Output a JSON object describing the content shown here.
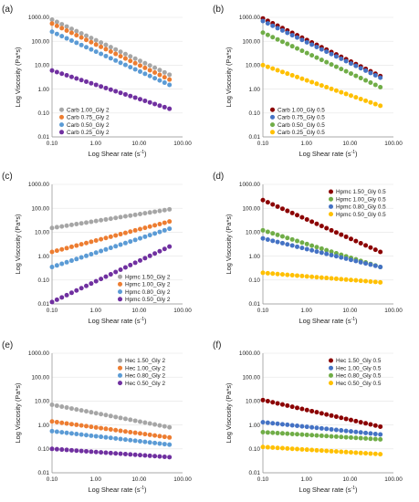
{
  "figure": {
    "panels": [
      {
        "letter": "(a)",
        "xlabel": "Log Shear rate (s",
        "xlabel_sup": "-1",
        "xlabel_tail": ")",
        "ylabel": "Log Viscosity (Pa*s)"
      },
      {
        "letter": "(b)",
        "xlabel": "Log Shear rate (s",
        "xlabel_sup": "-1",
        "xlabel_tail": ")",
        "ylabel": "Log Viscosity (Pa*s)"
      },
      {
        "letter": "(c)",
        "xlabel": "Log Shear rate (s",
        "xlabel_sup": "-1",
        "xlabel_tail": ")",
        "ylabel": "Log Viscosity (Pa*s)"
      },
      {
        "letter": "(d)",
        "xlabel": "Log Shear rate (s",
        "xlabel_sup": "-1",
        "xlabel_tail": ")",
        "ylabel": "Log Viscosity (Pa*s)"
      },
      {
        "letter": "(e)",
        "xlabel": "Log Shear rate (s",
        "xlabel_sup": "-1",
        "xlabel_tail": ")",
        "ylabel": "Log Viscosity (Pa*s)"
      },
      {
        "letter": "(f)",
        "xlabel": "Log Shear rate (s",
        "xlabel_sup": "-1",
        "xlabel_tail": ")",
        "ylabel": "Log Viscosity (Pa*s)"
      }
    ]
  },
  "chart_data": [
    {
      "panel": "(a)",
      "type": "scatter",
      "x_scale": "log",
      "y_scale": "log",
      "xlim": [
        0.1,
        100
      ],
      "ylim": [
        0.01,
        1000
      ],
      "xticks": [
        "0.10",
        "1.00",
        "10.00",
        "100.00"
      ],
      "yticks": [
        "0.01",
        "0.10",
        "1.00",
        "10.00",
        "100.00",
        "1000.00"
      ],
      "legend_position": "bottom-left",
      "x_range": [
        0.1,
        50
      ],
      "points_per_series": 25,
      "series": [
        {
          "name": "Carb 1.00_Gly 2",
          "color": "#a6a6a6",
          "y_start": 800,
          "y_end": 4
        },
        {
          "name": "Carb 0.75_Gly 2",
          "color": "#ed7d31",
          "y_start": 550,
          "y_end": 2.5
        },
        {
          "name": "Carb 0.50_Gly 2",
          "color": "#5b9bd5",
          "y_start": 250,
          "y_end": 1.5
        },
        {
          "name": "Carb 0.25_Gly 2",
          "color": "#7030a0",
          "y_start": 6,
          "y_end": 0.15
        }
      ]
    },
    {
      "panel": "(b)",
      "type": "scatter",
      "x_scale": "log",
      "y_scale": "log",
      "xlim": [
        0.1,
        100
      ],
      "ylim": [
        0.01,
        1000
      ],
      "xticks": [
        "0.10",
        "1.00",
        "10.00",
        "100.00"
      ],
      "yticks": [
        "0.01",
        "0.10",
        "1.00",
        "10.00",
        "100.00",
        "1000.00"
      ],
      "legend_position": "bottom-left",
      "x_range": [
        0.1,
        50
      ],
      "points_per_series": 25,
      "series": [
        {
          "name": "Carb 1.00_Gly 0.5",
          "color": "#8b0000",
          "y_start": 900,
          "y_end": 3.5
        },
        {
          "name": "Carb 0.75_Gly 0.5",
          "color": "#4472c4",
          "y_start": 700,
          "y_end": 3
        },
        {
          "name": "Carb 0.50_Gly 0.5",
          "color": "#70ad47",
          "y_start": 230,
          "y_end": 1.2
        },
        {
          "name": "Carb 0.25_Gly 0.5",
          "color": "#ffc000",
          "y_start": 10,
          "y_end": 0.2
        }
      ]
    },
    {
      "panel": "(c)",
      "type": "scatter",
      "x_scale": "log",
      "y_scale": "log",
      "xlim": [
        0.1,
        100
      ],
      "ylim": [
        0.01,
        1000
      ],
      "xticks": [
        "0.10",
        "1.00",
        "10.00",
        "100.00"
      ],
      "yticks": [
        "0.01",
        "0.10",
        "1.00",
        "10.00",
        "100.00",
        "1000.00"
      ],
      "legend_position": "bottom-right",
      "x_range": [
        0.1,
        50
      ],
      "points_per_series": 25,
      "series": [
        {
          "name": "Hpmc 1.50_Gly 2",
          "color": "#a6a6a6",
          "y_start": 15,
          "y_end": 90
        },
        {
          "name": "Hpmc 1.00_Gly 2",
          "color": "#ed7d31",
          "y_start": 1.5,
          "y_end": 28
        },
        {
          "name": "Hpmc 0.80_Gly 2",
          "color": "#5b9bd5",
          "y_start": 0.35,
          "y_end": 14
        },
        {
          "name": "Hpmc 0.50_Gly 2",
          "color": "#7030a0",
          "y_start": 0.012,
          "y_end": 2.5
        }
      ]
    },
    {
      "panel": "(d)",
      "type": "scatter",
      "x_scale": "log",
      "y_scale": "log",
      "xlim": [
        0.1,
        100
      ],
      "ylim": [
        0.01,
        1000
      ],
      "xticks": [
        "0.10",
        "1.00",
        "10.00",
        "100.00"
      ],
      "yticks": [
        "0.01",
        "0.10",
        "1.00",
        "10.00",
        "100.00",
        "1000.00"
      ],
      "legend_position": "top-right",
      "x_range": [
        0.1,
        50
      ],
      "points_per_series": 25,
      "series": [
        {
          "name": "Hpmc 1.50_Gly 0.5",
          "color": "#8b0000",
          "y_start": 220,
          "y_end": 1.5
        },
        {
          "name": "Hpmc 1.00_Gly 0.5",
          "color": "#70ad47",
          "y_start": 12,
          "y_end": 0.35
        },
        {
          "name": "Hpmc 0.80_Gly 0.5",
          "color": "#4472c4",
          "y_start": 5.5,
          "y_end": 0.35
        },
        {
          "name": "Hpmc 0.50_Gly 0.5",
          "color": "#ffc000",
          "y_start": 0.2,
          "y_end": 0.08
        }
      ]
    },
    {
      "panel": "(e)",
      "type": "scatter",
      "x_scale": "log",
      "y_scale": "log",
      "xlim": [
        0.1,
        100
      ],
      "ylim": [
        0.01,
        1000
      ],
      "xticks": [
        "0.10",
        "1.00",
        "10.00",
        "100.00"
      ],
      "yticks": [
        "0.01",
        "0.10",
        "1.00",
        "10.00",
        "100.00",
        "1000.00"
      ],
      "legend_position": "top-right",
      "x_range": [
        0.1,
        50
      ],
      "points_per_series": 25,
      "series": [
        {
          "name": "Hec 1.50_Gly 2",
          "color": "#a6a6a6",
          "y_start": 7,
          "y_end": 0.8
        },
        {
          "name": "Hec 1.00_Gly 2",
          "color": "#ed7d31",
          "y_start": 1.4,
          "y_end": 0.3
        },
        {
          "name": "Hec 0.80_Gly 2",
          "color": "#5b9bd5",
          "y_start": 0.55,
          "y_end": 0.15
        },
        {
          "name": "Hec 0.50_Gly 2",
          "color": "#7030a0",
          "y_start": 0.1,
          "y_end": 0.045
        }
      ]
    },
    {
      "panel": "(f)",
      "type": "scatter",
      "x_scale": "log",
      "y_scale": "log",
      "xlim": [
        0.1,
        100
      ],
      "ylim": [
        0.01,
        1000
      ],
      "xticks": [
        "0.10",
        "1.00",
        "10.00",
        "100.00"
      ],
      "yticks": [
        "0.01",
        "0.10",
        "1.00",
        "10.00",
        "100.00",
        "1000.00"
      ],
      "legend_position": "top-right",
      "x_range": [
        0.1,
        50
      ],
      "points_per_series": 25,
      "series": [
        {
          "name": "Hec 1.50_Gly 0.5",
          "color": "#8b0000",
          "y_start": 11,
          "y_end": 0.85
        },
        {
          "name": "Hec 1.00_Gly 0.5",
          "color": "#4472c4",
          "y_start": 1.3,
          "y_end": 0.4
        },
        {
          "name": "Hec 0.80_Gly 0.5",
          "color": "#70ad47",
          "y_start": 0.5,
          "y_end": 0.25
        },
        {
          "name": "Hec 0.50_Gly 0.5",
          "color": "#ffc000",
          "y_start": 0.12,
          "y_end": 0.06
        }
      ]
    }
  ]
}
